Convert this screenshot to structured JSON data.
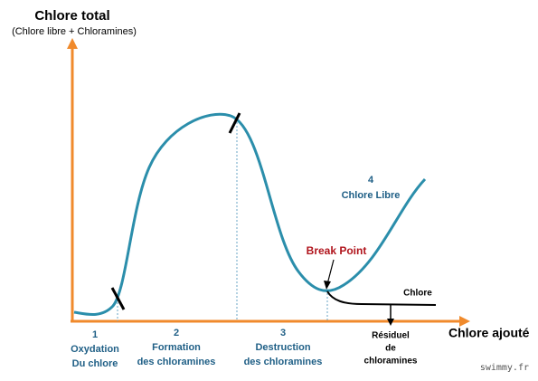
{
  "y_axis": {
    "title": "Chlore total",
    "subtitle": "(Chlore libre + Chloramines)"
  },
  "x_axis": {
    "title": "Chlore ajouté"
  },
  "zones": [
    {
      "number": "1",
      "lines": [
        "Oxydation",
        "Du chlore"
      ]
    },
    {
      "number": "2",
      "lines": [
        "Formation",
        "des chloramines"
      ]
    },
    {
      "number": "3",
      "lines": [
        "Destruction",
        "des chloramines"
      ]
    },
    {
      "number": "4",
      "lines": [
        "Chlore Libre"
      ]
    }
  ],
  "annotations": {
    "break_point": "Break Point",
    "chlore": "Chlore",
    "residuel": [
      "Résiduel",
      "de",
      "chloramines"
    ]
  },
  "watermark": "swimmy.fr"
}
